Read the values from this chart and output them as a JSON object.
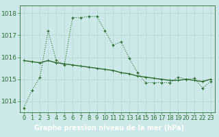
{
  "x": [
    0,
    1,
    2,
    3,
    4,
    5,
    6,
    7,
    8,
    9,
    10,
    11,
    12,
    13,
    14,
    15,
    16,
    17,
    18,
    19,
    20,
    21,
    22,
    23
  ],
  "y_dotted": [
    1013.7,
    1014.5,
    1015.1,
    1017.2,
    1015.85,
    1015.65,
    1017.8,
    1017.8,
    1017.85,
    1017.85,
    1017.2,
    1016.55,
    1016.7,
    1015.95,
    1015.3,
    1014.85,
    1014.85,
    1014.85,
    1014.85,
    1015.1,
    1015.0,
    1015.05,
    1014.6,
    1014.9
  ],
  "y_smooth": [
    1015.85,
    1015.8,
    1015.75,
    1015.85,
    1015.75,
    1015.7,
    1015.65,
    1015.6,
    1015.55,
    1015.5,
    1015.45,
    1015.4,
    1015.3,
    1015.25,
    1015.15,
    1015.1,
    1015.05,
    1015.0,
    1014.95,
    1014.95,
    1015.0,
    1014.95,
    1014.9,
    1015.0
  ],
  "line_color": "#2d6a2d",
  "bg_color": "#cce8e8",
  "grid_color": "#b5d5d5",
  "ylim_min": 1013.5,
  "ylim_max": 1018.35,
  "yticks": [
    1014,
    1015,
    1016,
    1017,
    1018
  ],
  "xlabel": "Graphe pression niveau de la mer (hPa)",
  "xlabel_color": "#ffffff",
  "xlabel_bg": "#2d6a2d",
  "tick_fontsize": 6.5
}
